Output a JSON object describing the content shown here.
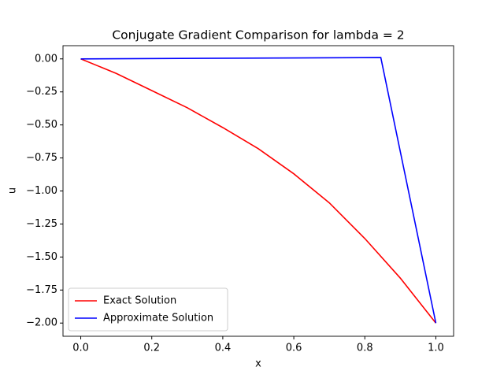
{
  "chart_data": {
    "type": "line",
    "title": "Conjugate Gradient Comparison for lambda = 2",
    "xlabel": "x",
    "ylabel": "u",
    "xlim": [
      -0.05,
      1.05
    ],
    "ylim": [
      -2.1,
      0.1
    ],
    "xticks": [
      {
        "value": 0,
        "label": "0.0"
      },
      {
        "value": 0.2,
        "label": "0.2"
      },
      {
        "value": 0.4,
        "label": "0.4"
      },
      {
        "value": 0.6,
        "label": "0.6"
      },
      {
        "value": 0.8,
        "label": "0.8"
      },
      {
        "value": 1,
        "label": "1.0"
      }
    ],
    "yticks": [
      {
        "value": -2,
        "label": "−2.00"
      },
      {
        "value": -1.75,
        "label": "−1.75"
      },
      {
        "value": -1.5,
        "label": "−1.50"
      },
      {
        "value": -1.25,
        "label": "−1.25"
      },
      {
        "value": -1,
        "label": "−1.00"
      },
      {
        "value": -0.75,
        "label": "−0.75"
      },
      {
        "value": -0.5,
        "label": "−0.50"
      },
      {
        "value": -0.25,
        "label": "−0.25"
      },
      {
        "value": 0,
        "label": "0.00"
      }
    ],
    "legend": "lower left",
    "series": [
      {
        "name": "Exact Solution",
        "color": "#ff0000",
        "x": [
          0,
          0.1,
          0.2,
          0.3,
          0.4,
          0.5,
          0.6,
          0.7,
          0.8,
          0.9,
          1.0
        ],
        "values": [
          0,
          -0.11,
          -0.24,
          -0.37,
          -0.52,
          -0.68,
          -0.87,
          -1.09,
          -1.36,
          -1.66,
          -2.0
        ]
      },
      {
        "name": "Approximate Solution",
        "color": "#0000ff",
        "x": [
          0,
          0.845,
          1.0
        ],
        "values": [
          0,
          0.01,
          -2.0
        ]
      }
    ]
  }
}
